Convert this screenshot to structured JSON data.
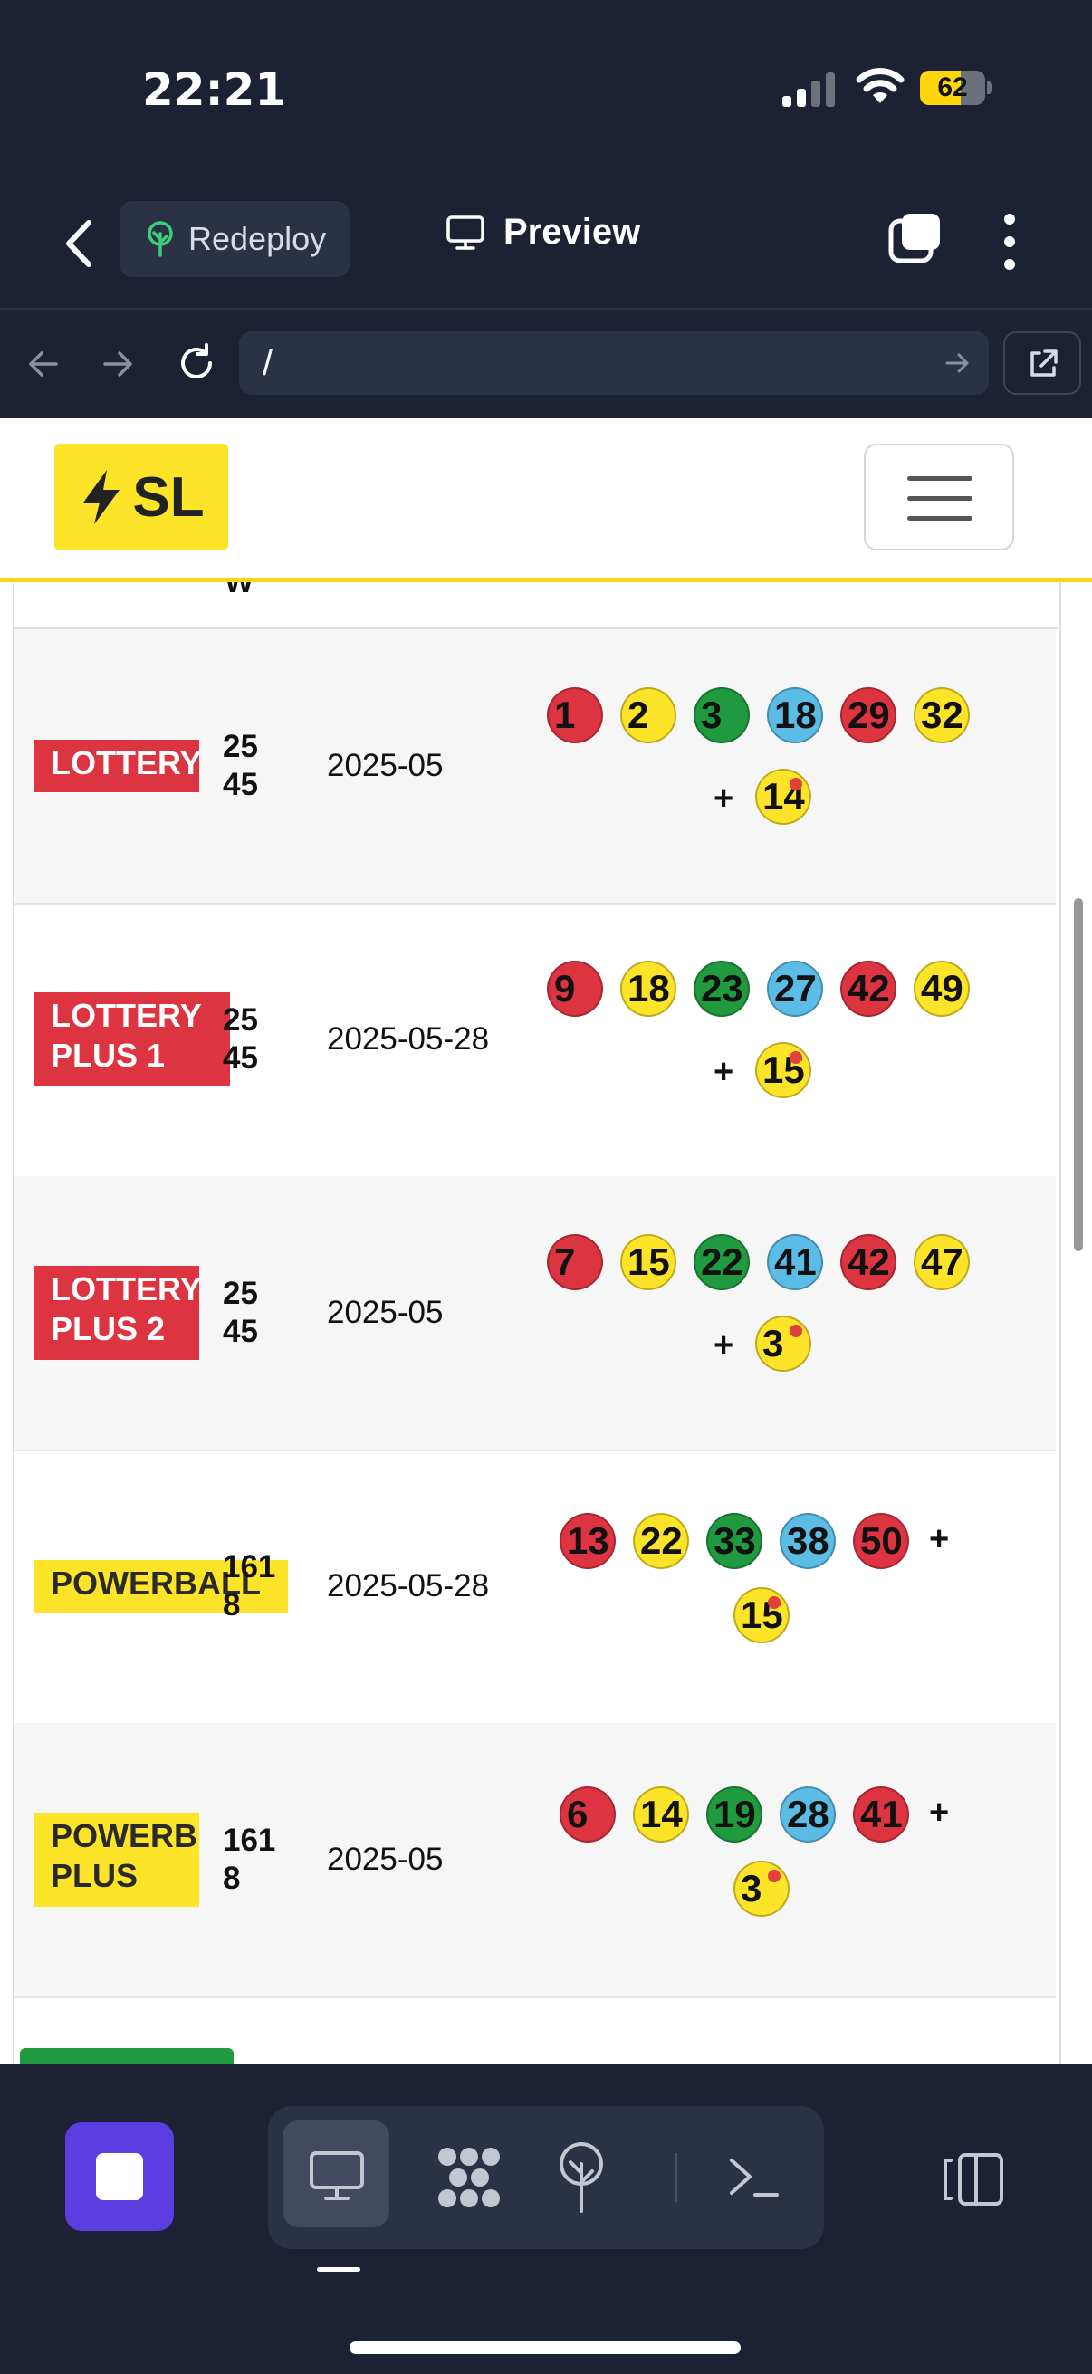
{
  "status_bar": {
    "time": "22:21",
    "battery": "62",
    "battery_level": 0.62
  },
  "app_header": {
    "redeploy_label": "Redeploy",
    "preview_label": "Preview"
  },
  "url_bar": {
    "url": "/"
  },
  "site": {
    "logo_text": "SL",
    "prev_row_fragment": "W",
    "rows": [
      {
        "game": "LOTTERY",
        "draw": "25\n45",
        "date": "2025-05",
        "balls": [
          "1",
          "2",
          "3",
          "18",
          "29",
          "32"
        ],
        "bonus": "14"
      },
      {
        "game": "LOTTERY\nPLUS 1",
        "draw": "25\n45",
        "date": "2025-05-28",
        "balls": [
          "9",
          "18",
          "23",
          "27",
          "42",
          "49"
        ],
        "bonus": "15"
      },
      {
        "game": "LOTTERY\nPLUS 2",
        "draw": "25\n45",
        "date": "2025-05",
        "balls": [
          "7",
          "15",
          "22",
          "41",
          "42",
          "47"
        ],
        "bonus": "3"
      },
      {
        "game": "POWERBALL",
        "draw": "161\n8",
        "date": "2025-05-28",
        "balls": [
          "13",
          "22",
          "33",
          "38",
          "50"
        ],
        "bonus": "15"
      },
      {
        "game": "POWERB\nPLUS",
        "draw": "161\n8",
        "date": "2025-05",
        "balls": [
          "6",
          "14",
          "19",
          "28",
          "41"
        ],
        "bonus": "3"
      }
    ],
    "plus_sign": "+",
    "ball_colors": {
      "red": "#dc3440",
      "yellow": "#fde428",
      "green": "#1f9a3f",
      "blue": "#5bbde6"
    }
  },
  "bottom_bar": {
    "icons": [
      "stop-icon",
      "desktop-icon",
      "components-icon",
      "deploy-icon",
      "terminal-icon",
      "panel-icon"
    ]
  }
}
